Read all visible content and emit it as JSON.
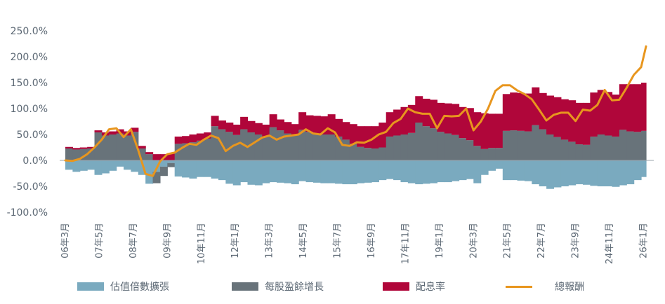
{
  "chart_data": {
    "type": "bar",
    "subtype": "stacked step area (positive/negative) with line overlay",
    "title": "",
    "xlabel": "",
    "ylabel": "",
    "ylim": [
      -100,
      250
    ],
    "y_ticks": [
      "250.0%",
      "200.0%",
      "150.0%",
      "100.0%",
      "50.0%",
      "0.0%",
      "-50.0%",
      "-100.0%"
    ],
    "y_tick_values": [
      250,
      200,
      150,
      100,
      50,
      0,
      -50,
      -100
    ],
    "x_tick_labels": [
      "06年3月",
      "07年5月",
      "08年7月",
      "09年9月",
      "10年11月",
      "12年1月",
      "13年3月",
      "14年5月",
      "15年7月",
      "16年9月",
      "17年11月",
      "19年1月",
      "20年3月",
      "21年5月",
      "22年7月",
      "23年9月",
      "24年11月",
      "26年1月"
    ],
    "grid": false,
    "legend_position": "bottom",
    "x_start": "2006-03",
    "x_step_months": 3,
    "series": [
      {
        "name": "估值倍數擴張",
        "kind": "bar",
        "color": "#7aaabf",
        "values": [
          -18,
          -22,
          -20,
          -18,
          -28,
          -25,
          -20,
          -12,
          -18,
          -22,
          -28,
          -45,
          -22,
          -12,
          -5,
          -31,
          -33,
          -35,
          -32,
          -32,
          -35,
          -38,
          -45,
          -48,
          -42,
          -47,
          -48,
          -44,
          -42,
          -43,
          -44,
          -46,
          -40,
          -42,
          -43,
          -44,
          -44,
          -45,
          -46,
          -46,
          -44,
          -43,
          -42,
          -38,
          -36,
          -38,
          -42,
          -44,
          -46,
          -45,
          -44,
          -42,
          -42,
          -40,
          -38,
          -36,
          -44,
          -28,
          -20,
          -16,
          -38,
          -38,
          -39,
          -40,
          -46,
          -50,
          -55,
          -52,
          -50,
          -48,
          -46,
          -47,
          -49,
          -50,
          -50,
          -51,
          -48,
          -46,
          -38,
          -32
        ]
      },
      {
        "name": "每股盈餘增長",
        "kind": "bar",
        "color": "#68737a",
        "values": [
          23,
          21,
          22,
          23,
          54,
          48,
          50,
          52,
          48,
          55,
          23,
          12,
          -22,
          -18,
          -8,
          32,
          33,
          35,
          38,
          42,
          66,
          60,
          55,
          49,
          60,
          54,
          50,
          46,
          64,
          58,
          52,
          49,
          59,
          55,
          50,
          50,
          50,
          46,
          40,
          32,
          26,
          24,
          23,
          25,
          46,
          48,
          50,
          53,
          73,
          66,
          62,
          55,
          52,
          49,
          43,
          39,
          28,
          22,
          24,
          24,
          57,
          58,
          57,
          56,
          68,
          60,
          50,
          45,
          40,
          36,
          31,
          30,
          46,
          50,
          48,
          46,
          59,
          56,
          55,
          57
        ]
      },
      {
        "name": "配息率",
        "kind": "bar",
        "color": "#b0063a",
        "values": [
          3,
          3,
          3,
          3,
          4,
          6,
          6,
          8,
          8,
          8,
          5,
          4,
          12,
          12,
          13,
          14,
          14,
          15,
          14,
          12,
          20,
          17,
          18,
          20,
          24,
          22,
          22,
          23,
          25,
          21,
          22,
          21,
          34,
          32,
          36,
          35,
          39,
          34,
          34,
          38,
          40,
          42,
          43,
          48,
          47,
          50,
          53,
          54,
          51,
          53,
          55,
          56,
          58,
          60,
          60,
          62,
          65,
          69,
          66,
          66,
          71,
          73,
          73,
          73,
          73,
          70,
          75,
          77,
          78,
          80,
          80,
          81,
          85,
          86,
          84,
          81,
          88,
          91,
          92,
          93
        ]
      },
      {
        "name": "總報酬",
        "kind": "line",
        "color": "#e8961e",
        "values": [
          0,
          -1,
          3,
          12,
          25,
          40,
          60,
          62,
          45,
          60,
          20,
          -26,
          -30,
          -2,
          12,
          15,
          24,
          32,
          30,
          40,
          48,
          43,
          18,
          28,
          34,
          26,
          35,
          44,
          48,
          40,
          46,
          48,
          50,
          60,
          52,
          50,
          62,
          54,
          30,
          28,
          35,
          34,
          40,
          50,
          55,
          72,
          80,
          100,
          93,
          90,
          90,
          62,
          86,
          85,
          86,
          100,
          58,
          75,
          100,
          134,
          145,
          145,
          135,
          128,
          118,
          98,
          77,
          88,
          92,
          92,
          76,
          98,
          96,
          107,
          136,
          116,
          117,
          140,
          165,
          180,
          220
        ]
      }
    ]
  },
  "legend": {
    "items": [
      {
        "label": "估值倍數擴張",
        "color": "#7aaabf",
        "type": "box"
      },
      {
        "label": "每股盈餘增長",
        "color": "#68737a",
        "type": "box"
      },
      {
        "label": "配息率",
        "color": "#b0063a",
        "type": "box"
      },
      {
        "label": "總報酬",
        "color": "#e8961e",
        "type": "line"
      }
    ]
  }
}
